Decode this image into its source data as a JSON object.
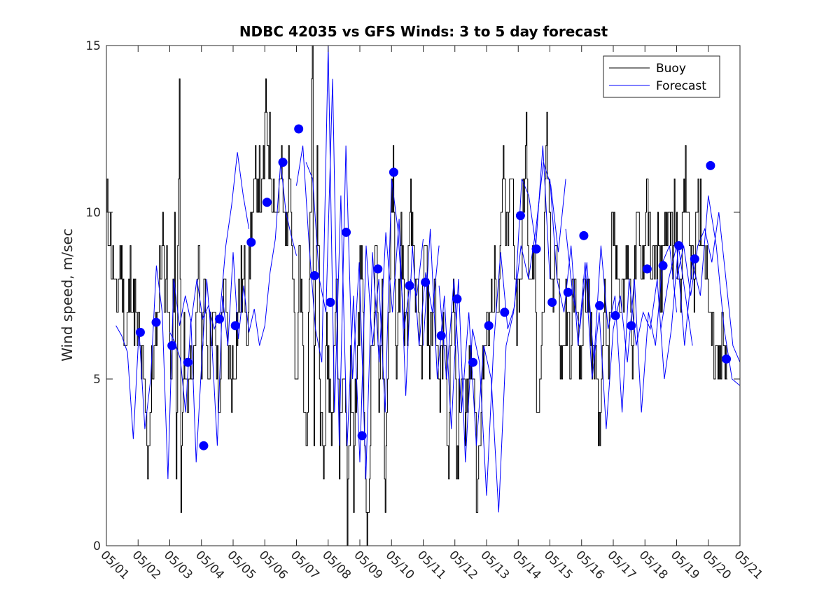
{
  "chart_data": {
    "type": "line",
    "title": "NDBC 42035 vs GFS Winds: 3 to 5 day forecast",
    "xlabel": "",
    "ylabel": "Wind speed, m/sec",
    "xlim": [
      0,
      20
    ],
    "ylim": [
      0,
      15
    ],
    "x_tick_labels": [
      "05/01",
      "05/02",
      "05/03",
      "05/04",
      "05/05",
      "05/06",
      "05/07",
      "05/08",
      "05/09",
      "05/10",
      "05/11",
      "05/12",
      "05/13",
      "05/14",
      "05/15",
      "05/16",
      "05/17",
      "05/18",
      "05/19",
      "05/20",
      "05/21"
    ],
    "y_ticks": [
      0,
      5,
      10,
      15
    ],
    "grid": false,
    "legend": {
      "position": "top-right",
      "entries": [
        "Buoy",
        "Forecast"
      ]
    },
    "colors": {
      "buoy": "#000000",
      "forecast": "#0000ff",
      "marker": "#0000ff"
    },
    "buoy_anchors": [
      [
        0.0,
        10
      ],
      [
        0.15,
        9
      ],
      [
        0.3,
        7
      ],
      [
        0.45,
        9
      ],
      [
        0.6,
        6
      ],
      [
        0.75,
        8
      ],
      [
        0.9,
        7
      ],
      [
        1.05,
        6
      ],
      [
        1.15,
        5
      ],
      [
        1.3,
        3
      ],
      [
        1.45,
        5
      ],
      [
        1.6,
        7
      ],
      [
        1.75,
        9
      ],
      [
        1.9,
        8
      ],
      [
        2.05,
        5
      ],
      [
        2.15,
        9
      ],
      [
        2.2,
        2
      ],
      [
        2.3,
        14
      ],
      [
        2.35,
        1
      ],
      [
        2.45,
        6
      ],
      [
        2.55,
        4
      ],
      [
        2.65,
        6
      ],
      [
        2.8,
        5
      ],
      [
        2.9,
        9
      ],
      [
        3.0,
        6
      ],
      [
        3.1,
        8
      ],
      [
        3.2,
        5
      ],
      [
        3.3,
        7
      ],
      [
        3.45,
        6
      ],
      [
        3.55,
        4
      ],
      [
        3.7,
        8
      ],
      [
        3.85,
        6
      ],
      [
        4.0,
        5
      ],
      [
        4.15,
        7
      ],
      [
        4.3,
        8
      ],
      [
        4.45,
        7
      ],
      [
        4.6,
        10
      ],
      [
        4.75,
        11
      ],
      [
        4.9,
        10
      ],
      [
        5.05,
        13
      ],
      [
        5.2,
        11
      ],
      [
        5.35,
        10
      ],
      [
        5.5,
        11
      ],
      [
        5.65,
        9
      ],
      [
        5.8,
        12
      ],
      [
        5.9,
        8
      ],
      [
        6.0,
        4
      ],
      [
        6.1,
        9
      ],
      [
        6.2,
        5
      ],
      [
        6.3,
        3
      ],
      [
        6.4,
        7
      ],
      [
        6.5,
        15
      ],
      [
        6.55,
        3
      ],
      [
        6.65,
        12
      ],
      [
        6.75,
        4
      ],
      [
        6.85,
        2
      ],
      [
        6.95,
        6
      ],
      [
        7.1,
        4
      ],
      [
        7.25,
        8
      ],
      [
        7.35,
        3
      ],
      [
        7.5,
        6
      ],
      [
        7.6,
        1
      ],
      [
        7.7,
        5
      ],
      [
        7.8,
        2
      ],
      [
        7.95,
        7
      ],
      [
        8.05,
        9
      ],
      [
        8.15,
        3
      ],
      [
        8.25,
        0
      ],
      [
        8.35,
        5
      ],
      [
        8.5,
        9
      ],
      [
        8.6,
        4
      ],
      [
        8.7,
        8
      ],
      [
        8.8,
        1
      ],
      [
        8.9,
        7
      ],
      [
        9.05,
        11
      ],
      [
        9.15,
        5
      ],
      [
        9.3,
        9
      ],
      [
        9.45,
        6
      ],
      [
        9.6,
        10
      ],
      [
        9.75,
        8
      ],
      [
        9.9,
        5
      ],
      [
        10.05,
        9
      ],
      [
        10.2,
        6
      ],
      [
        10.35,
        8
      ],
      [
        10.5,
        4
      ],
      [
        10.65,
        7
      ],
      [
        10.8,
        3
      ],
      [
        10.95,
        9
      ],
      [
        11.05,
        2
      ],
      [
        11.2,
        5
      ],
      [
        11.35,
        4
      ],
      [
        11.5,
        6
      ],
      [
        11.6,
        5
      ],
      [
        11.7,
        1
      ],
      [
        11.8,
        4
      ],
      [
        11.95,
        6
      ],
      [
        12.1,
        7
      ],
      [
        12.25,
        8
      ],
      [
        12.35,
        6
      ],
      [
        12.5,
        11
      ],
      [
        12.65,
        9
      ],
      [
        12.8,
        11
      ],
      [
        12.95,
        7
      ],
      [
        13.1,
        9
      ],
      [
        13.25,
        12
      ],
      [
        13.35,
        7
      ],
      [
        13.5,
        9
      ],
      [
        13.6,
        4
      ],
      [
        13.75,
        6
      ],
      [
        13.9,
        12
      ],
      [
        14.05,
        8
      ],
      [
        14.2,
        9
      ],
      [
        14.35,
        5
      ],
      [
        14.5,
        7
      ],
      [
        14.65,
        6
      ],
      [
        14.8,
        8
      ],
      [
        14.95,
        5
      ],
      [
        15.1,
        8
      ],
      [
        15.25,
        7
      ],
      [
        15.4,
        6
      ],
      [
        15.55,
        3
      ],
      [
        15.7,
        8
      ],
      [
        15.85,
        6
      ],
      [
        16.0,
        10
      ],
      [
        16.15,
        8
      ],
      [
        16.3,
        7
      ],
      [
        16.45,
        9
      ],
      [
        16.6,
        6
      ],
      [
        16.75,
        10
      ],
      [
        16.9,
        8
      ],
      [
        17.05,
        11
      ],
      [
        17.2,
        8
      ],
      [
        17.35,
        9
      ],
      [
        17.5,
        8
      ],
      [
        17.65,
        10
      ],
      [
        17.8,
        9
      ],
      [
        17.95,
        10
      ],
      [
        18.1,
        8
      ],
      [
        18.25,
        11
      ],
      [
        18.4,
        9
      ],
      [
        18.55,
        8
      ],
      [
        18.7,
        10
      ],
      [
        18.85,
        9
      ],
      [
        19.0,
        7
      ],
      [
        19.15,
        6
      ],
      [
        19.3,
        5
      ],
      [
        19.45,
        6
      ],
      [
        19.6,
        5
      ]
    ],
    "forecast_series": [
      {
        "start": 2.0,
        "end": 6.0,
        "values": [
          6.4,
          6.1,
          5.6,
          4.0,
          6.8,
          2.5,
          5.4,
          8.0,
          6.0,
          3.0,
          7.5,
          6.0,
          8.8,
          6.2,
          7.8,
          6.4,
          7.1,
          6.0,
          6.6,
          8.2,
          9.2,
          11.5,
          10.0,
          9.3,
          8.7
        ]
      },
      {
        "start": 0.3,
        "end": 4.5,
        "values": [
          6.6,
          6.3,
          5.8,
          3.2,
          6.5,
          3.5,
          5.0,
          8.4,
          7.0,
          2.0,
          8.0,
          6.6,
          7.5,
          6.7,
          8.0,
          6.8,
          7.2,
          6.5,
          7.0,
          9.0,
          10.2,
          11.8,
          10.5,
          9.5
        ]
      },
      {
        "start": 6.0,
        "end": 10.0,
        "values": [
          10.8,
          12.0,
          9.0,
          6.5,
          5.5,
          15.0,
          4.0,
          10.5,
          3.0,
          7.5,
          2.5,
          9.0,
          6.0,
          8.0,
          4.0,
          11.0,
          9.5,
          6.5,
          8.0,
          7.5,
          9.2
        ]
      },
      {
        "start": 6.3,
        "end": 10.5,
        "values": [
          11.5,
          11.0,
          8.0,
          7.0,
          14.0,
          3.0,
          12.0,
          5.0,
          8.5,
          2.0,
          8.8,
          5.5,
          9.4,
          7.0,
          9.8,
          4.5,
          9.0,
          6.0,
          8.2,
          7.0,
          9.0
        ]
      },
      {
        "start": 10.0,
        "end": 14.0,
        "values": [
          6.0,
          9.5,
          5.0,
          7.5,
          3.5,
          8.0,
          2.5,
          6.5,
          5.5,
          1.5,
          6.0,
          8.8,
          6.5,
          7.2,
          11.0,
          10.5,
          9.0,
          12.0,
          8.0
        ]
      },
      {
        "start": 10.5,
        "end": 14.5,
        "values": [
          7.8,
          5.0,
          8.0,
          4.0,
          7.0,
          3.0,
          6.0,
          5.0,
          1.0,
          6.0,
          7.0,
          9.0,
          8.0,
          9.5,
          11.5,
          10.8,
          8.8,
          11.0
        ]
      },
      {
        "start": 14.0,
        "end": 18.0,
        "values": [
          11.0,
          8.0,
          7.0,
          9.0,
          6.0,
          8.5,
          5.0,
          7.0,
          3.5,
          6.5,
          7.5,
          5.5,
          8.0,
          4.0,
          7.0,
          6.0,
          8.5,
          9.0,
          7.0
        ]
      },
      {
        "start": 14.5,
        "end": 18.5,
        "values": [
          9.5,
          7.5,
          6.5,
          8.5,
          5.5,
          9.0,
          6.5,
          7.5,
          4.0,
          8.0,
          6.0,
          7.0,
          6.5,
          8.0,
          5.0,
          6.5,
          9.0,
          7.5,
          6.0
        ]
      },
      {
        "start": 17.5,
        "end": 20.0,
        "values": [
          6.5,
          8.0,
          9.0,
          6.0,
          8.5,
          7.5,
          10.5,
          9.0,
          6.5,
          5.0,
          4.8
        ]
      },
      {
        "start": 18.0,
        "end": 20.0,
        "values": [
          8.0,
          9.0,
          7.5,
          9.0,
          9.5,
          8.5,
          10.0,
          8.0,
          6.0,
          5.5
        ]
      }
    ],
    "forecast_markers": [
      {
        "x": 1.07,
        "y": 6.4
      },
      {
        "x": 1.57,
        "y": 6.7
      },
      {
        "x": 2.07,
        "y": 6.0
      },
      {
        "x": 2.57,
        "y": 5.5
      },
      {
        "x": 3.07,
        "y": 3.0
      },
      {
        "x": 3.57,
        "y": 6.8
      },
      {
        "x": 4.07,
        "y": 6.6
      },
      {
        "x": 4.57,
        "y": 9.1
      },
      {
        "x": 5.07,
        "y": 10.3
      },
      {
        "x": 5.57,
        "y": 11.5
      },
      {
        "x": 6.07,
        "y": 12.5
      },
      {
        "x": 6.57,
        "y": 8.1
      },
      {
        "x": 7.07,
        "y": 7.3
      },
      {
        "x": 7.57,
        "y": 9.4
      },
      {
        "x": 8.07,
        "y": 3.3
      },
      {
        "x": 8.57,
        "y": 8.3
      },
      {
        "x": 9.07,
        "y": 11.2
      },
      {
        "x": 9.57,
        "y": 7.8
      },
      {
        "x": 10.07,
        "y": 7.9
      },
      {
        "x": 10.57,
        "y": 6.3
      },
      {
        "x": 11.07,
        "y": 7.4
      },
      {
        "x": 11.57,
        "y": 5.5
      },
      {
        "x": 12.07,
        "y": 6.6
      },
      {
        "x": 12.57,
        "y": 7.0
      },
      {
        "x": 13.07,
        "y": 9.9
      },
      {
        "x": 13.57,
        "y": 8.9
      },
      {
        "x": 14.07,
        "y": 7.3
      },
      {
        "x": 14.57,
        "y": 7.6
      },
      {
        "x": 15.07,
        "y": 9.3
      },
      {
        "x": 15.57,
        "y": 7.2
      },
      {
        "x": 16.07,
        "y": 6.9
      },
      {
        "x": 16.57,
        "y": 6.6
      },
      {
        "x": 17.07,
        "y": 8.3
      },
      {
        "x": 17.57,
        "y": 8.4
      },
      {
        "x": 18.07,
        "y": 9.0
      },
      {
        "x": 18.57,
        "y": 8.6
      },
      {
        "x": 19.07,
        "y": 11.4
      },
      {
        "x": 19.57,
        "y": 5.6
      }
    ]
  }
}
